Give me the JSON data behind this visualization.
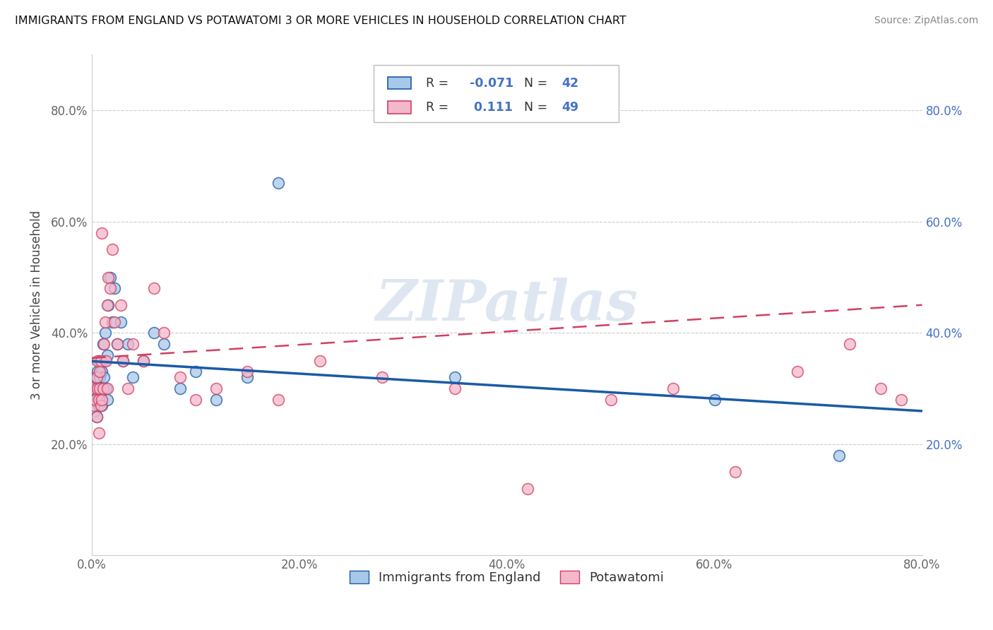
{
  "title": "IMMIGRANTS FROM ENGLAND VS POTAWATOMI 3 OR MORE VEHICLES IN HOUSEHOLD CORRELATION CHART",
  "source": "Source: ZipAtlas.com",
  "xlabel_ticks": [
    "0.0%",
    "20.0%",
    "40.0%",
    "60.0%",
    "80.0%"
  ],
  "ylabel_ticks_left": [
    "20.0%",
    "40.0%",
    "60.0%",
    "80.0%"
  ],
  "ylabel_ticks_right": [
    "20.0%",
    "40.0%",
    "60.0%",
    "80.0%"
  ],
  "ylabel_label": "3 or more Vehicles in Household",
  "legend_label1": "Immigrants from England",
  "legend_label2": "Potawatomi",
  "R1": -0.071,
  "N1": 42,
  "R2": 0.111,
  "N2": 49,
  "color1": "#a8c8e8",
  "color2": "#f4b8cc",
  "line_color1": "#1a5aa8",
  "line_color2": "#d04060",
  "watermark": "ZIPatlas",
  "watermark_color": "#c8d8e8",
  "background": "#ffffff",
  "xlim": [
    0.0,
    0.8
  ],
  "ylim": [
    0.0,
    0.9
  ],
  "scatter1_x": [
    0.002,
    0.003,
    0.004,
    0.005,
    0.005,
    0.006,
    0.006,
    0.007,
    0.007,
    0.008,
    0.008,
    0.009,
    0.009,
    0.01,
    0.01,
    0.011,
    0.012,
    0.012,
    0.013,
    0.014,
    0.015,
    0.015,
    0.016,
    0.018,
    0.02,
    0.022,
    0.025,
    0.028,
    0.03,
    0.035,
    0.04,
    0.05,
    0.06,
    0.07,
    0.085,
    0.1,
    0.12,
    0.15,
    0.18,
    0.35,
    0.6,
    0.72
  ],
  "scatter1_y": [
    0.28,
    0.26,
    0.32,
    0.3,
    0.25,
    0.33,
    0.28,
    0.35,
    0.27,
    0.3,
    0.32,
    0.28,
    0.3,
    0.33,
    0.27,
    0.38,
    0.35,
    0.32,
    0.4,
    0.3,
    0.36,
    0.28,
    0.45,
    0.5,
    0.42,
    0.48,
    0.38,
    0.42,
    0.35,
    0.38,
    0.32,
    0.35,
    0.4,
    0.38,
    0.3,
    0.33,
    0.28,
    0.32,
    0.67,
    0.32,
    0.28,
    0.18
  ],
  "scatter2_x": [
    0.002,
    0.003,
    0.004,
    0.005,
    0.005,
    0.006,
    0.006,
    0.007,
    0.007,
    0.008,
    0.008,
    0.009,
    0.009,
    0.01,
    0.01,
    0.011,
    0.012,
    0.013,
    0.014,
    0.015,
    0.015,
    0.016,
    0.018,
    0.02,
    0.022,
    0.025,
    0.028,
    0.03,
    0.035,
    0.04,
    0.05,
    0.06,
    0.07,
    0.085,
    0.1,
    0.12,
    0.15,
    0.18,
    0.22,
    0.28,
    0.35,
    0.42,
    0.5,
    0.56,
    0.62,
    0.68,
    0.73,
    0.76,
    0.78
  ],
  "scatter2_y": [
    0.27,
    0.3,
    0.28,
    0.32,
    0.25,
    0.35,
    0.3,
    0.28,
    0.22,
    0.3,
    0.33,
    0.35,
    0.27,
    0.28,
    0.58,
    0.3,
    0.38,
    0.42,
    0.35,
    0.45,
    0.3,
    0.5,
    0.48,
    0.55,
    0.42,
    0.38,
    0.45,
    0.35,
    0.3,
    0.38,
    0.35,
    0.48,
    0.4,
    0.32,
    0.28,
    0.3,
    0.33,
    0.28,
    0.35,
    0.32,
    0.3,
    0.12,
    0.28,
    0.3,
    0.15,
    0.33,
    0.38,
    0.3,
    0.28
  ]
}
